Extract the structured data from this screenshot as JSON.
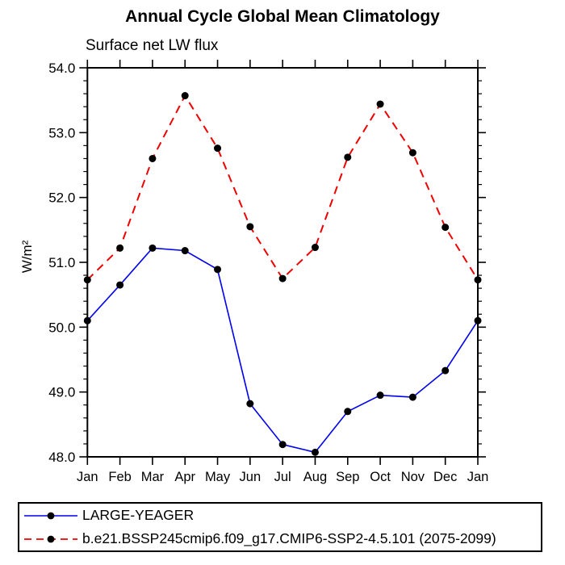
{
  "title": "Annual Cycle Global Mean Climatology",
  "subtitle": "Surface net LW flux",
  "chart_data": {
    "type": "line",
    "categories": [
      "Jan",
      "Feb",
      "Mar",
      "Apr",
      "May",
      "Jun",
      "Jul",
      "Aug",
      "Sep",
      "Oct",
      "Nov",
      "Dec",
      "Jan"
    ],
    "series": [
      {
        "name": "LARGE-YEAGER",
        "color": "#0000ee",
        "line_style": "solid",
        "marker": "filled-circle",
        "marker_color": "#000000",
        "values": [
          50.1,
          50.65,
          51.22,
          51.18,
          50.89,
          48.82,
          48.19,
          48.07,
          48.7,
          48.95,
          48.92,
          49.33,
          50.1
        ]
      },
      {
        "name": "b.e21.BSSP245cmip6.f09_g17.CMIP6-SSP2-4.5.101 (2075-2099)",
        "color": "#ee0000",
        "line_style": "dashed",
        "marker": "filled-circle",
        "marker_color": "#000000",
        "values": [
          50.73,
          51.22,
          52.6,
          53.57,
          52.76,
          51.55,
          50.75,
          51.23,
          52.62,
          53.44,
          52.69,
          51.54,
          50.73
        ]
      }
    ],
    "xlabel": "",
    "ylabel": "W/m²",
    "ylim": [
      48.0,
      54.0
    ],
    "ytick_labels": [
      "48.0",
      "49.0",
      "50.0",
      "51.0",
      "52.0",
      "53.0",
      "54.0"
    ],
    "ytick_interval": 1.0,
    "yminor_interval": 0.2,
    "grid": false,
    "axis_color": "#000000",
    "legend_position": "bottom-left-box"
  }
}
